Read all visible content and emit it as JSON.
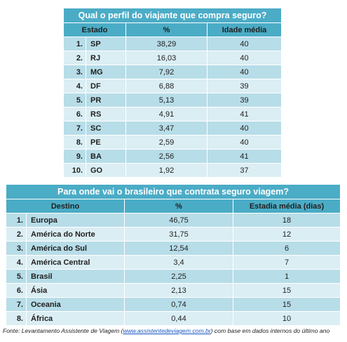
{
  "chart_data": [
    {
      "type": "table",
      "title": "Qual o perfil do viajante que compra seguro?",
      "columns": [
        "Estado",
        "%",
        "Idade média"
      ],
      "rows": [
        {
          "rank": "1.",
          "name": "SP",
          "pct": "38,29",
          "val": "40"
        },
        {
          "rank": "2.",
          "name": "RJ",
          "pct": "16,03",
          "val": "40"
        },
        {
          "rank": "3.",
          "name": "MG",
          "pct": "7,92",
          "val": "40"
        },
        {
          "rank": "4.",
          "name": "DF",
          "pct": "6,88",
          "val": "39"
        },
        {
          "rank": "5.",
          "name": "PR",
          "pct": "5,13",
          "val": "39"
        },
        {
          "rank": "6.",
          "name": "RS",
          "pct": "4,91",
          "val": "41"
        },
        {
          "rank": "7.",
          "name": "SC",
          "pct": "3,47",
          "val": "40"
        },
        {
          "rank": "8.",
          "name": "PE",
          "pct": "2,59",
          "val": "40"
        },
        {
          "rank": "9.",
          "name": "BA",
          "pct": "2,56",
          "val": "41"
        },
        {
          "rank": "10.",
          "name": "GO",
          "pct": "1,92",
          "val": "37"
        }
      ]
    },
    {
      "type": "table",
      "title": "Para onde vai o brasileiro que contrata seguro viagem?",
      "columns": [
        "Destino",
        "%",
        "Estadia média (dias)"
      ],
      "rows": [
        {
          "rank": "1.",
          "name": "Europa",
          "pct": "46,75",
          "val": "18"
        },
        {
          "rank": "2.",
          "name": "América do Norte",
          "pct": "31,75",
          "val": "12"
        },
        {
          "rank": "3.",
          "name": "América do Sul",
          "pct": "12,54",
          "val": "6"
        },
        {
          "rank": "4.",
          "name": "América Central",
          "pct": "3,4",
          "val": "7"
        },
        {
          "rank": "5.",
          "name": " Brasil",
          "pct": "2,25",
          "val": "1"
        },
        {
          "rank": "6.",
          "name": "Ásia",
          "pct": "2,13",
          "val": "15"
        },
        {
          "rank": "7.",
          "name": "Oceania",
          "pct": "0,74",
          "val": "15"
        },
        {
          "rank": "8.",
          "name": "África",
          "pct": "0,44",
          "val": "10"
        }
      ]
    }
  ],
  "source": {
    "prefix": "Fonte: Levantamento Assistente de Viagem (",
    "link": "www.assistentedeviagem.com.br",
    "suffix": ") com base em dados internos do último ano"
  }
}
